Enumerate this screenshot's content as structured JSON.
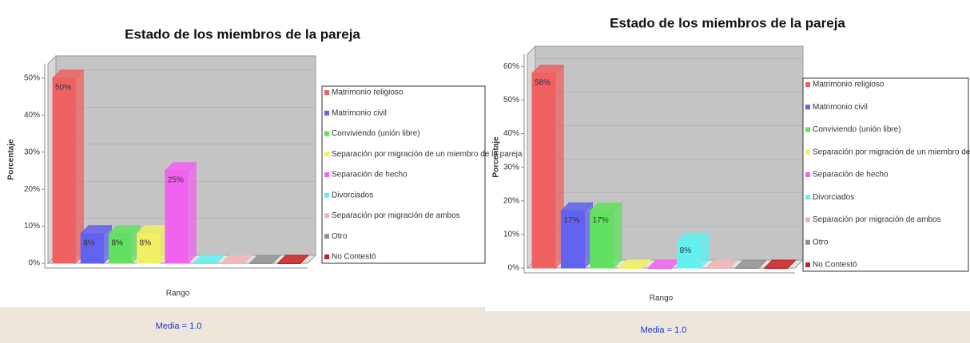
{
  "chart_data": [
    {
      "type": "bar",
      "title": "Estado de los miembros de la pareja",
      "ylabel": "Porcentaje",
      "xlabel": "Rango",
      "note": "Media = 1.0",
      "categories": [
        "Matrimonio religioso",
        "Matrimonio civil",
        "Conviviendo (unión libre)",
        "Separación por migración de un miembro de la pareja",
        "Separación de hecho",
        "Divorciados",
        "Separación por migración de ambos",
        "Otro",
        "No Contestó"
      ],
      "colors": [
        "#f06262",
        "#6262f0",
        "#62e062",
        "#f0f062",
        "#f062f0",
        "#62f0f0",
        "#f0b4b4",
        "#909090",
        "#c42222"
      ],
      "values": [
        50,
        8,
        8,
        8,
        25,
        0,
        0,
        0,
        0
      ],
      "value_labels": [
        "50%",
        "8%",
        "8%",
        "8%",
        "25%",
        null,
        null,
        null,
        null
      ],
      "ylim": [
        0,
        56
      ],
      "yticks": [
        {
          "value": 0,
          "label": "0%"
        },
        {
          "value": 10,
          "label": "10%"
        },
        {
          "value": 20,
          "label": "20%"
        },
        {
          "value": 30,
          "label": "30%"
        },
        {
          "value": 40,
          "label": "40%"
        },
        {
          "value": 50,
          "label": "50%"
        }
      ],
      "legend": true
    },
    {
      "type": "bar",
      "title": "Estado de los miembros de la pareja",
      "ylabel": "Porcentaje",
      "xlabel": "Rango",
      "note": "Media = 1.0",
      "categories": [
        "Matrimonio religioso",
        "Matrimonio civil",
        "Conviviendo (unión libre)",
        "Separación por migración de un miembro de la pareja",
        "Separación de hecho",
        "Divorciados",
        "Separación por migración de ambos",
        "Otro",
        "No Contestó"
      ],
      "colors": [
        "#f06262",
        "#6262f0",
        "#62e062",
        "#f0f062",
        "#f062f0",
        "#62f0f0",
        "#f0b4b4",
        "#909090",
        "#c42222"
      ],
      "values": [
        58,
        17,
        17,
        0,
        0,
        8,
        0,
        0,
        0
      ],
      "value_labels": [
        "58%",
        "17%",
        "17%",
        null,
        null,
        "8%",
        null,
        null,
        null
      ],
      "ylim": [
        0,
        66
      ],
      "yticks": [
        {
          "value": 0,
          "label": "0%"
        },
        {
          "value": 10,
          "label": "10%"
        },
        {
          "value": 20,
          "label": "20%"
        },
        {
          "value": 30,
          "label": "30%"
        },
        {
          "value": 40,
          "label": "40%"
        },
        {
          "value": 50,
          "label": "50%"
        },
        {
          "value": 60,
          "label": "60%"
        }
      ],
      "legend": true
    }
  ]
}
